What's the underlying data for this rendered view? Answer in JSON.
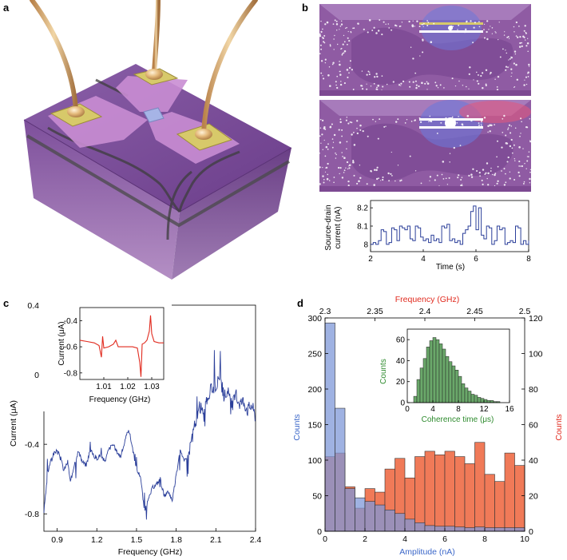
{
  "panels": {
    "a": "a",
    "b": "b",
    "c": "c",
    "d": "d"
  },
  "colors": {
    "blue_line": "#2b3f9a",
    "red_line": "#e12b1f",
    "green_bar": "#6aa86a",
    "blue_bar": "#7f98d8",
    "orange_bar": "#f07a58",
    "purple_device": "#8e5ba6",
    "gold_pad": "#d7c96a"
  },
  "chart_data": [
    {
      "id": "b_trace",
      "type": "line",
      "xlabel": "Time (s)",
      "ylabel": [
        "Source-drain",
        "current (nA)"
      ],
      "xlim": [
        2,
        8
      ],
      "ylim": [
        7.96,
        8.24
      ],
      "xticks": [
        "2",
        "4",
        "6",
        "8"
      ],
      "yticks": [
        "8",
        "8.1",
        "8.2"
      ],
      "note": "random telegraph signal switching between ~8.0 and ~8.1 nA with a spike near 8.2 nA around 5.9-6.1 s",
      "x": [
        2.0,
        2.1,
        2.2,
        2.3,
        2.4,
        2.5,
        2.6,
        2.7,
        2.8,
        2.9,
        3.0,
        3.1,
        3.2,
        3.3,
        3.4,
        3.5,
        3.6,
        3.7,
        3.8,
        3.9,
        4.0,
        4.1,
        4.2,
        4.3,
        4.4,
        4.5,
        4.6,
        4.7,
        4.8,
        4.9,
        5.0,
        5.1,
        5.2,
        5.3,
        5.4,
        5.5,
        5.6,
        5.7,
        5.8,
        5.9,
        6.0,
        6.1,
        6.2,
        6.3,
        6.4,
        6.5,
        6.6,
        6.7,
        6.8,
        6.9,
        7.0,
        7.1,
        7.2,
        7.3,
        7.4,
        7.5,
        7.6,
        7.7,
        7.8,
        7.9,
        8.0
      ],
      "y": [
        8.0,
        8.01,
        8.0,
        8.02,
        8.08,
        8.07,
        8.0,
        8.01,
        8.09,
        8.08,
        8.02,
        8.1,
        8.09,
        8.08,
        8.1,
        8.03,
        8.02,
        8.1,
        8.09,
        8.04,
        8.02,
        8.03,
        8.01,
        8.05,
        8.02,
        8.03,
        8.01,
        8.1,
        8.09,
        8.11,
        8.02,
        8.03,
        8.01,
        8.02,
        8.0,
        8.06,
        8.08,
        8.1,
        8.18,
        8.21,
        8.08,
        8.2,
        8.05,
        8.03,
        8.1,
        8.09,
        8.0,
        8.02,
        8.1,
        8.08,
        8.09,
        8.0,
        8.01,
        8.02,
        8.01,
        8.1,
        8.09,
        8.0,
        8.02,
        8.0,
        8.02
      ]
    },
    {
      "id": "c_main",
      "type": "line",
      "xlabel": "Frequency (GHz)",
      "ylabel": "Current (μA)",
      "xlim": [
        0.8,
        2.4
      ],
      "ylim": [
        -0.9,
        0.4
      ],
      "xticks": [
        "0.9",
        "1.2",
        "1.5",
        "1.8",
        "2.1",
        "2.4"
      ],
      "yticks": [
        "0.4",
        "0",
        "-0.4",
        "-0.8"
      ],
      "x": [
        0.8,
        0.83,
        0.86,
        0.89,
        0.92,
        0.95,
        0.98,
        1.0,
        1.03,
        1.06,
        1.09,
        1.12,
        1.15,
        1.18,
        1.2,
        1.23,
        1.26,
        1.29,
        1.32,
        1.35,
        1.38,
        1.41,
        1.44,
        1.47,
        1.5,
        1.53,
        1.56,
        1.59,
        1.62,
        1.65,
        1.68,
        1.71,
        1.74,
        1.77,
        1.8,
        1.83,
        1.86,
        1.89,
        1.92,
        1.95,
        1.98,
        2.01,
        2.04,
        2.07,
        2.1,
        2.13,
        2.16,
        2.19,
        2.22,
        2.25,
        2.28,
        2.31,
        2.34,
        2.37,
        2.4
      ],
      "y": [
        -0.79,
        -0.56,
        -0.47,
        -0.44,
        -0.46,
        -0.55,
        -0.5,
        -0.62,
        -0.51,
        -0.44,
        -0.5,
        -0.52,
        -0.43,
        -0.47,
        -0.48,
        -0.46,
        -0.5,
        -0.43,
        -0.4,
        -0.44,
        -0.47,
        -0.39,
        -0.31,
        -0.42,
        -0.55,
        -0.58,
        -0.79,
        -0.72,
        -0.65,
        -0.63,
        -0.6,
        -0.7,
        -0.67,
        -0.72,
        -0.58,
        -0.42,
        -0.5,
        -0.47,
        -0.35,
        -0.27,
        -0.18,
        -0.24,
        -0.12,
        -0.08,
        -0.06,
        -0.02,
        -0.12,
        -0.1,
        -0.18,
        -0.12,
        -0.16,
        -0.15,
        -0.2,
        -0.17,
        -0.24
      ]
    },
    {
      "id": "c_inset",
      "type": "line",
      "xlabel": "Frequency (GHz)",
      "ylabel": "Current (μA)",
      "xlim": [
        1.0,
        1.035
      ],
      "ylim": [
        -0.85,
        -0.3
      ],
      "xticks": [
        "1.01",
        "1.02",
        "1.03"
      ],
      "yticks": [
        "-0.4",
        "-0.6",
        "-0.8"
      ],
      "x": [
        1.0,
        1.003,
        1.006,
        1.008,
        1.009,
        1.0095,
        1.01,
        1.012,
        1.014,
        1.015,
        1.016,
        1.018,
        1.02,
        1.022,
        1.024,
        1.025,
        1.0255,
        1.026,
        1.027,
        1.028,
        1.029,
        1.0295,
        1.03,
        1.031,
        1.033,
        1.035
      ],
      "y": [
        -0.55,
        -0.56,
        -0.57,
        -0.59,
        -0.68,
        -0.52,
        -0.61,
        -0.6,
        -0.58,
        -0.55,
        -0.6,
        -0.6,
        -0.6,
        -0.6,
        -0.61,
        -0.72,
        -0.83,
        -0.58,
        -0.57,
        -0.55,
        -0.48,
        -0.36,
        -0.5,
        -0.56,
        -0.57,
        -0.57
      ]
    },
    {
      "id": "d_main",
      "type": "bar",
      "xlabel": "Amplitude (nA)",
      "ylabel_left": "Counts",
      "ylabel_right": "Counts",
      "top_xlabel": "Frequency (GHz)",
      "xlim": [
        0,
        10
      ],
      "ylim_left": [
        0,
        300
      ],
      "ylim_right": [
        0,
        120
      ],
      "xlim_top": [
        2.3,
        2.5
      ],
      "xticks": [
        "0",
        "2",
        "4",
        "6",
        "8",
        "10"
      ],
      "yticks_left": [
        "0",
        "50",
        "100",
        "150",
        "200",
        "250",
        "300"
      ],
      "yticks_right": [
        "0",
        "20",
        "40",
        "60",
        "80",
        "100",
        "120"
      ],
      "xticks_top": [
        "2.3",
        "2.35",
        "2.4",
        "2.45",
        "2.5"
      ],
      "series": [
        {
          "name": "Amplitude",
          "axis": "left",
          "bin_edges": [
            0,
            0.5,
            1,
            1.5,
            2,
            2.5,
            3,
            3.5,
            4,
            4.5,
            5,
            5.5,
            6,
            6.5,
            7,
            7.5,
            8,
            8.5,
            9,
            9.5,
            10
          ],
          "values": [
            293,
            173,
            60,
            47,
            42,
            37,
            30,
            25,
            17,
            12,
            8,
            7,
            7,
            6,
            5,
            6,
            5,
            5,
            5,
            5
          ]
        },
        {
          "name": "Frequency",
          "axis": "right",
          "bin_edges": [
            2.3,
            2.31,
            2.32,
            2.33,
            2.34,
            2.35,
            2.36,
            2.37,
            2.38,
            2.39,
            2.4,
            2.41,
            2.42,
            2.43,
            2.44,
            2.45,
            2.46,
            2.47,
            2.48,
            2.49,
            2.5
          ],
          "values": [
            42,
            44,
            25,
            13,
            24,
            22,
            35,
            41,
            30,
            42,
            45,
            43,
            45,
            42,
            38,
            50,
            32,
            28,
            44,
            37
          ]
        }
      ]
    },
    {
      "id": "d_inset",
      "type": "bar",
      "xlabel": "Coherence time (μs)",
      "ylabel": "Counts",
      "xlim": [
        0,
        16
      ],
      "ylim": [
        0,
        70
      ],
      "xticks": [
        "0",
        "4",
        "8",
        "12",
        "16"
      ],
      "yticks": [
        "0",
        "20",
        "40",
        "60"
      ],
      "bin_edges": [
        1,
        1.5,
        2,
        2.5,
        3,
        3.5,
        4,
        4.5,
        5,
        5.5,
        6,
        6.5,
        7,
        7.5,
        8,
        8.5,
        9,
        9.5,
        10,
        10.5,
        11,
        11.5,
        12,
        12.5,
        13,
        13.5,
        14,
        14.5
      ],
      "values": [
        6,
        22,
        33,
        42,
        53,
        59,
        62,
        60,
        56,
        51,
        44,
        39,
        35,
        31,
        25,
        18,
        14,
        11,
        8,
        7,
        5,
        4,
        3,
        2,
        2,
        1,
        1
      ]
    }
  ]
}
